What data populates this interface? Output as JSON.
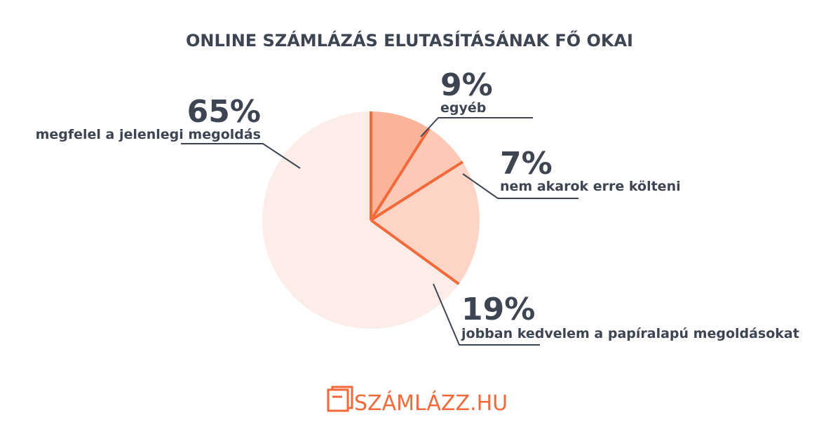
{
  "chart_data": {
    "type": "pie",
    "title": "ONLINE SZÁMLÁZÁS ELUTASÍTÁSÁNAK FŐ OKAI",
    "categories": [
      "egyéb",
      "nem akarok erre költeni",
      "jobban kedvelem a papíralapú megoldásokat",
      "megfelel a jelenlegi megoldás"
    ],
    "values": [
      9,
      7,
      19,
      65
    ],
    "value_labels": [
      "9%",
      "7%",
      "19%",
      "65%"
    ],
    "colors": [
      "#fbb49a",
      "#fcc9b6",
      "#fdd5c6",
      "#fdede8"
    ],
    "separator_color": "#f26a3a"
  },
  "footer": {
    "logo": "SZÁMLÁZZ.HU"
  }
}
